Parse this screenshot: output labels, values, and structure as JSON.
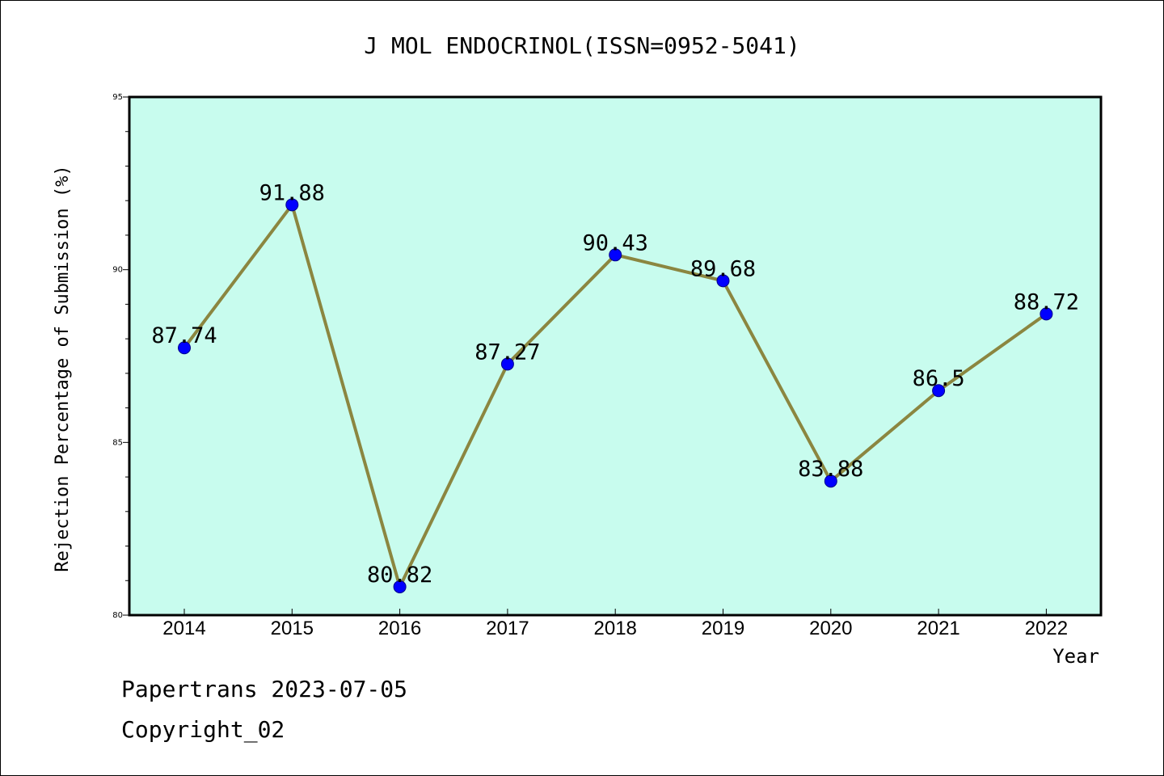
{
  "footer": {
    "line1": "Papertrans 2023-07-05",
    "line2": "Copyright_02"
  },
  "chart_data": {
    "type": "line",
    "title": "J MOL ENDOCRINOL(ISSN=0952-5041)",
    "xlabel": "Year",
    "ylabel": "Rejection Percentage of Submission (%)",
    "categories": [
      "2014",
      "2015",
      "2016",
      "2017",
      "2018",
      "2019",
      "2020",
      "2021",
      "2022"
    ],
    "values": [
      87.74,
      91.88,
      80.82,
      87.27,
      90.43,
      89.68,
      83.88,
      86.5,
      88.72
    ],
    "data_labels": [
      "87.74",
      "91.88",
      "80.82",
      "87.27",
      "90.43",
      "89.68",
      "83.88",
      "86.5",
      "88.72"
    ],
    "ylim": [
      80,
      95
    ],
    "yticks": [
      80,
      85,
      90,
      95
    ],
    "grid": false,
    "colors": {
      "plot_background": "#c8fcee",
      "line": "#8b8640",
      "marker": "#0000ff"
    }
  }
}
